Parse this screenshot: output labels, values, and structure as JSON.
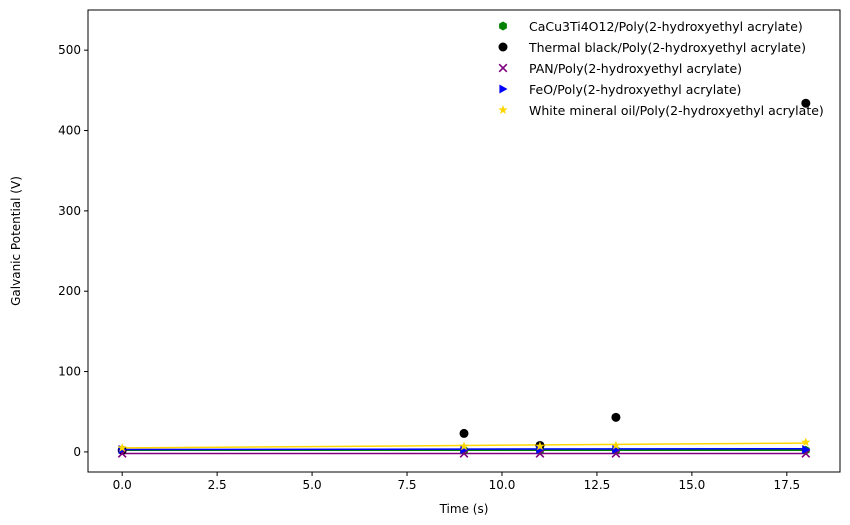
{
  "chart_data": {
    "type": "scatter",
    "xlabel": "Time (s)",
    "ylabel": "Galvanic Potential (V)",
    "xlim": [
      -0.9,
      18.9
    ],
    "ylim": [
      -25,
      550
    ],
    "xticks": [
      0.0,
      2.5,
      5.0,
      7.5,
      10.0,
      12.5,
      15.0,
      17.5
    ],
    "xtick_labels": [
      "0.0",
      "2.5",
      "5.0",
      "7.5",
      "10.0",
      "12.5",
      "15.0",
      "17.5"
    ],
    "yticks": [
      0,
      100,
      200,
      300,
      400,
      500
    ],
    "ytick_labels": [
      "0",
      "100",
      "200",
      "300",
      "400",
      "500"
    ],
    "grid": false,
    "legend_position": "top-right",
    "series": [
      {
        "name": "CaCu3Ti4O12/Poly(2-hydroxyethyl acrylate)",
        "color": "#008000",
        "marker": "hexagon",
        "x": [
          0,
          9,
          11,
          13,
          18
        ],
        "y": [
          2,
          2,
          2,
          2,
          2
        ],
        "fit": [
          2,
          2
        ]
      },
      {
        "name": "Thermal black/Poly(2-hydroxyethyl acrylate)",
        "color": "#000000",
        "marker": "circle",
        "x": [
          0,
          9,
          11,
          13,
          18
        ],
        "y": [
          2,
          23,
          8,
          43,
          434
        ],
        "fit": null
      },
      {
        "name": "PAN/Poly(2-hydroxyethyl acrylate)",
        "color": "#800080",
        "marker": "x",
        "x": [
          0,
          9,
          11,
          13,
          18
        ],
        "y": [
          -2,
          -2,
          -2,
          -2,
          -2
        ],
        "fit": [
          -2,
          -2
        ]
      },
      {
        "name": "FeO/Poly(2-hydroxyethyl acrylate)",
        "color": "#0000ff",
        "marker": "triangle-right",
        "x": [
          0,
          9,
          11,
          13,
          18
        ],
        "y": [
          3,
          3,
          3,
          3,
          3
        ],
        "fit": [
          3,
          4
        ]
      },
      {
        "name": "White mineral oil/Poly(2-hydroxyethyl acrylate)",
        "color": "#ffd700",
        "marker": "star",
        "x": [
          0,
          9,
          11,
          13,
          18
        ],
        "y": [
          5,
          7,
          7,
          8,
          12
        ],
        "fit": [
          5,
          11
        ]
      }
    ]
  }
}
